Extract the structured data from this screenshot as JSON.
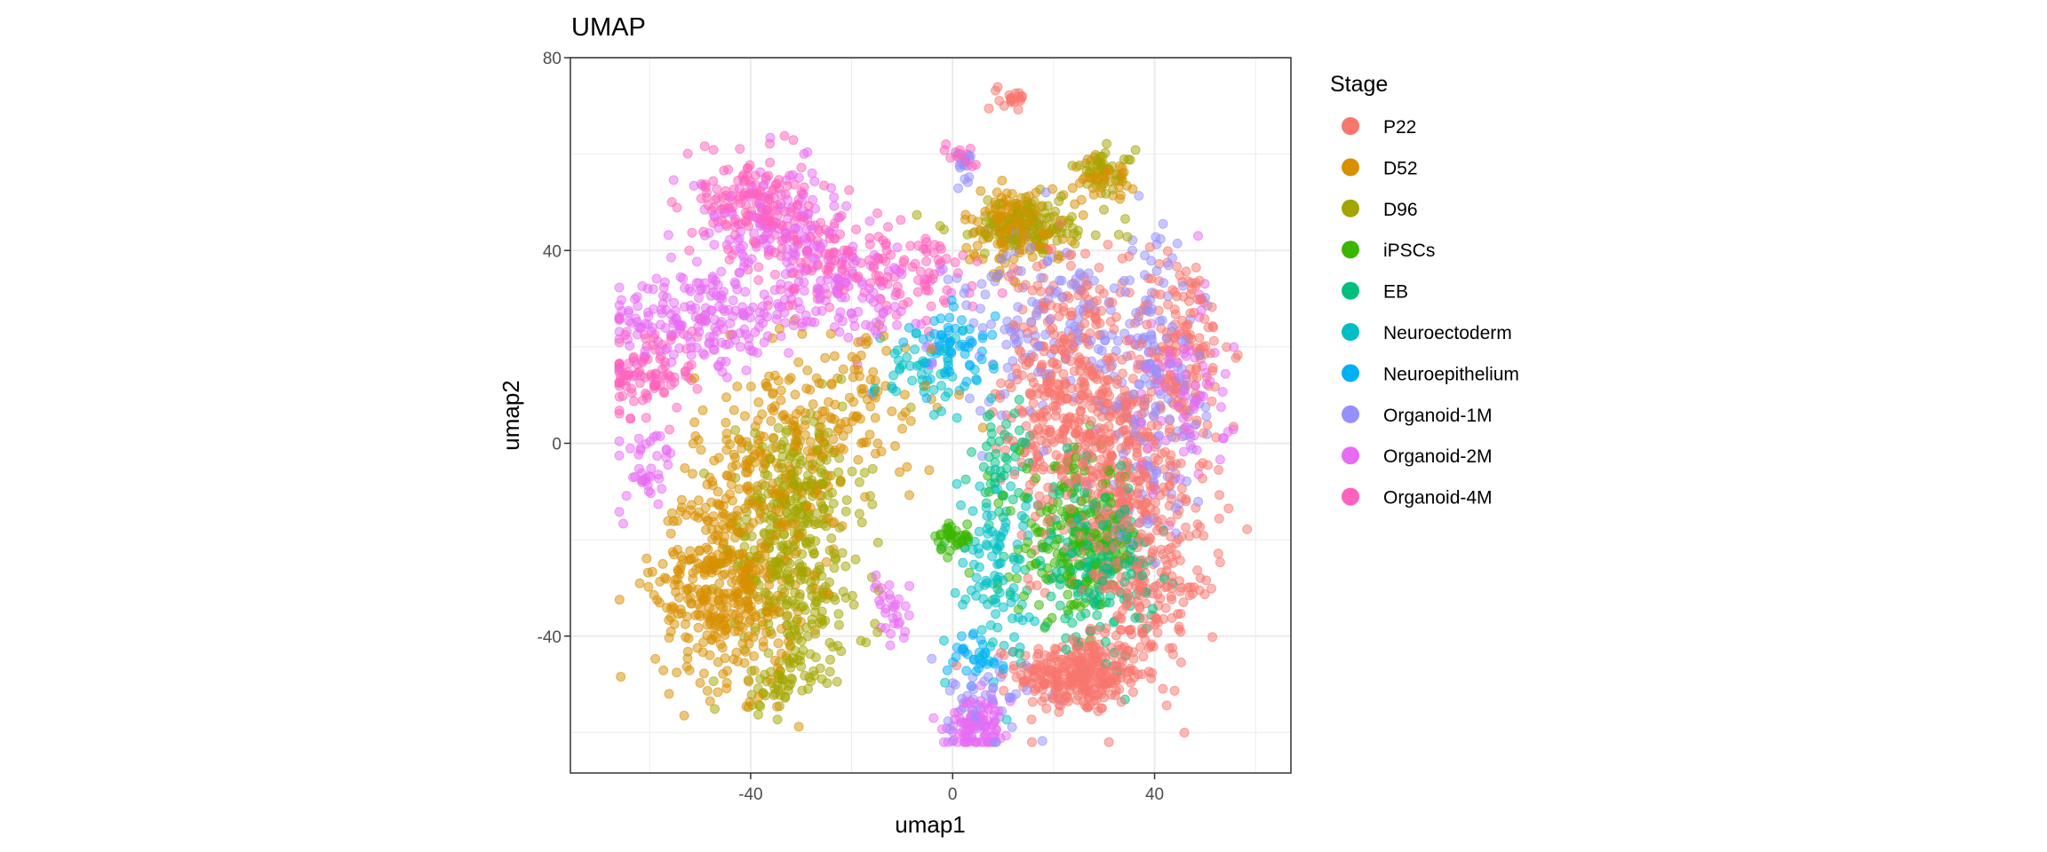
{
  "chart_data": {
    "type": "scatter",
    "title": "UMAP",
    "xlabel": "umap1",
    "ylabel": "umap2",
    "xlim": [
      -75.7,
      67
    ],
    "ylim": [
      -68.4,
      80
    ],
    "xticks": [
      -40,
      0,
      40
    ],
    "yticks": [
      80,
      40,
      0,
      -40
    ],
    "xtick_labels": [
      "-40",
      "0",
      "40"
    ],
    "ytick_labels": [
      "80",
      "40",
      "0",
      "-40"
    ],
    "grid": true,
    "legend": {
      "title": "Stage",
      "placement": "right"
    },
    "point_alpha": 0.5,
    "note": "clusters given as [center_x, center_y, sd_x, sd_y, n_points] in umap units",
    "series": [
      {
        "name": "P22",
        "color": "#F8766D",
        "clusters": [
          [
            25,
            -48,
            6,
            4,
            300
          ],
          [
            22,
            15,
            6,
            12,
            300
          ],
          [
            35,
            -15,
            8,
            15,
            300
          ],
          [
            45,
            20,
            5,
            10,
            150
          ],
          [
            30,
            0,
            8,
            8,
            200
          ],
          [
            12,
            72,
            1.5,
            1.2,
            20
          ],
          [
            40,
            -30,
            5,
            8,
            100
          ]
        ]
      },
      {
        "name": "D52",
        "color": "#D89000",
        "clusters": [
          [
            -45,
            -30,
            7,
            10,
            400
          ],
          [
            -35,
            -5,
            8,
            10,
            200
          ],
          [
            12,
            45,
            5,
            4,
            150
          ],
          [
            30,
            55,
            3,
            2,
            40
          ],
          [
            -20,
            10,
            10,
            8,
            100
          ]
        ]
      },
      {
        "name": "D96",
        "color": "#A3A500",
        "clusters": [
          [
            -30,
            -10,
            6,
            8,
            200
          ],
          [
            -35,
            -50,
            4,
            3,
            60
          ],
          [
            -28,
            -35,
            6,
            6,
            100
          ],
          [
            15,
            45,
            8,
            3,
            120
          ],
          [
            30,
            57,
            3,
            2,
            40
          ],
          [
            -35,
            -25,
            5,
            5,
            100
          ]
        ]
      },
      {
        "name": "iPSCs",
        "color": "#39B600",
        "clusters": [
          [
            0,
            -20,
            2,
            2,
            40
          ],
          [
            25,
            -20,
            6,
            8,
            200
          ]
        ]
      },
      {
        "name": "EB",
        "color": "#00BF7D",
        "clusters": [
          [
            28,
            -25,
            6,
            8,
            200
          ],
          [
            10,
            -5,
            3,
            8,
            50
          ]
        ]
      },
      {
        "name": "Neuroectoderm",
        "color": "#00BFC4",
        "clusters": [
          [
            8,
            -25,
            4,
            10,
            100
          ],
          [
            -5,
            15,
            5,
            5,
            50
          ]
        ]
      },
      {
        "name": "Neuroepithelium",
        "color": "#00B0F6",
        "clusters": [
          [
            0,
            20,
            4,
            4,
            60
          ],
          [
            5,
            -45,
            3,
            3,
            30
          ]
        ]
      },
      {
        "name": "Organoid-1M",
        "color": "#9590FF",
        "clusters": [
          [
            20,
            25,
            10,
            10,
            150
          ],
          [
            40,
            10,
            5,
            15,
            150
          ],
          [
            5,
            -55,
            5,
            5,
            50
          ],
          [
            3,
            58,
            1.5,
            2,
            15
          ]
        ]
      },
      {
        "name": "Organoid-2M",
        "color": "#E76BF3",
        "clusters": [
          [
            -50,
            25,
            10,
            5,
            200
          ],
          [
            -35,
            45,
            8,
            6,
            150
          ],
          [
            5,
            -58,
            3,
            3,
            100
          ],
          [
            -20,
            30,
            8,
            5,
            100
          ],
          [
            45,
            10,
            5,
            10,
            80
          ],
          [
            -60,
            -5,
            3,
            5,
            40
          ],
          [
            -12,
            -35,
            2,
            4,
            30
          ]
        ]
      },
      {
        "name": "Organoid-4M",
        "color": "#FF62BC",
        "clusters": [
          [
            -40,
            50,
            5,
            5,
            150
          ],
          [
            -60,
            15,
            5,
            5,
            100
          ],
          [
            -10,
            35,
            10,
            5,
            100
          ],
          [
            -25,
            40,
            8,
            6,
            80
          ],
          [
            2,
            60,
            1.5,
            1.5,
            15
          ]
        ]
      }
    ]
  }
}
